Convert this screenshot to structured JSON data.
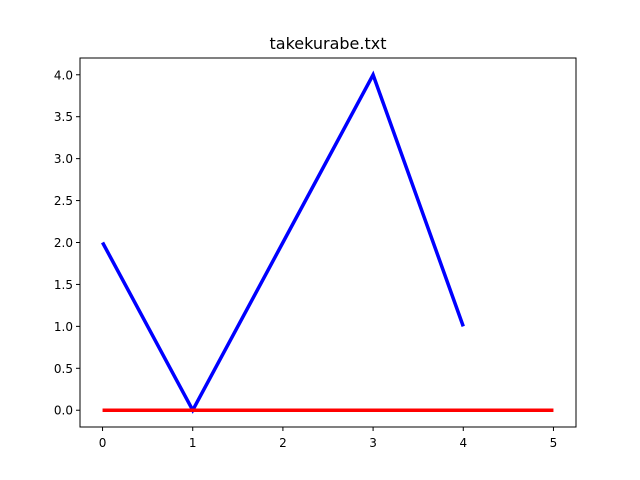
{
  "chart_data": {
    "type": "line",
    "title": "takekurabe.txt",
    "xlabel": "",
    "ylabel": "",
    "xlim": [
      -0.25,
      5.25
    ],
    "ylim": [
      -0.2,
      4.2
    ],
    "x_ticks": [
      0,
      1,
      2,
      3,
      4,
      5
    ],
    "y_ticks": [
      0.0,
      0.5,
      1.0,
      1.5,
      2.0,
      2.5,
      3.0,
      3.5,
      4.0
    ],
    "x_tick_labels": [
      "0",
      "1",
      "2",
      "3",
      "4",
      "5"
    ],
    "y_tick_labels": [
      "0.0",
      "0.5",
      "1.0",
      "1.5",
      "2.0",
      "2.5",
      "3.0",
      "3.5",
      "4.0"
    ],
    "grid": false,
    "series": [
      {
        "color": "#0000ff",
        "x": [
          0,
          1,
          2,
          3,
          4
        ],
        "y": [
          2,
          0,
          2,
          4,
          1
        ]
      },
      {
        "color": "#ff0000",
        "x": [
          0,
          1,
          2,
          3,
          4,
          5
        ],
        "y": [
          0,
          0,
          0,
          0,
          0,
          0
        ]
      }
    ]
  }
}
